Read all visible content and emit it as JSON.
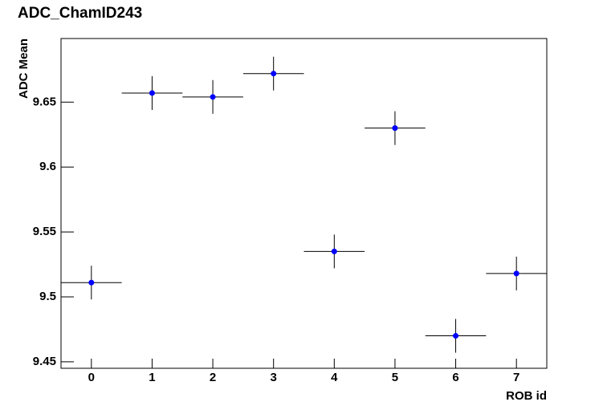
{
  "chart_data": {
    "type": "scatter",
    "title": "ADC_ChamID243",
    "x_label": "ROB id",
    "y_label": "ADC Mean",
    "x": [
      0,
      1,
      2,
      3,
      4,
      5,
      6,
      7
    ],
    "series": [
      {
        "color": "#0000ff",
        "values": [
          9.511,
          9.657,
          9.654,
          9.672,
          9.535,
          9.63,
          9.47,
          9.518
        ],
        "y_errors": [
          0.013,
          0.013,
          0.013,
          0.013,
          0.013,
          0.013,
          0.013,
          0.013
        ],
        "x_errors": [
          0.5,
          0.5,
          0.5,
          0.5,
          0.5,
          0.5,
          0.5,
          0.5
        ]
      }
    ],
    "xlim": [
      -0.5,
      7.5
    ],
    "xticks": [
      0,
      1,
      2,
      3,
      4,
      5,
      6,
      7
    ],
    "ylim": [
      9.445,
      9.699
    ],
    "yticks": [
      9.45,
      9.5,
      9.55,
      9.6,
      9.65
    ]
  }
}
